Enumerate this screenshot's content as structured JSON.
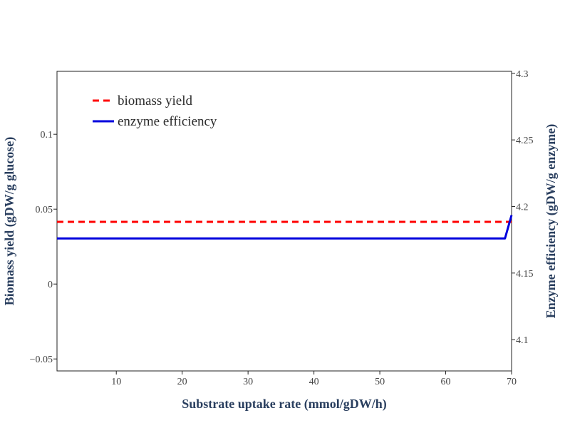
{
  "chart_data": {
    "type": "line",
    "xlabel": "Substrate uptake rate (mmol/gDW/h)",
    "ylabel": "Biomass yield (gDW/g glucose)",
    "y2label": "Enzyme efficiency (gDW/g enzyme)",
    "xlim": [
      1,
      70
    ],
    "ylim": [
      -0.058,
      0.142
    ],
    "y2lim": [
      4.0765,
      4.3015
    ],
    "xticks": [
      10,
      20,
      30,
      40,
      50,
      60,
      70
    ],
    "yticks": [
      -0.05,
      0,
      0.05,
      0.1
    ],
    "ytick_labels": [
      "−0.05",
      "0",
      "0.05",
      "0.1"
    ],
    "y2ticks": [
      4.1,
      4.15,
      4.2,
      4.25,
      4.3
    ],
    "ytick2_labels": [
      "4.1",
      "4.15",
      "4.2",
      "4.25",
      "4.3"
    ],
    "grid": false,
    "legend_position": "top-left",
    "series": [
      {
        "name": "biomass yield",
        "axis": "left",
        "color": "#ff0000",
        "dash": "dashed",
        "x": [
          1,
          70
        ],
        "y": [
          0.0415,
          0.0415
        ]
      },
      {
        "name": "enzyme efficiency",
        "axis": "right",
        "color": "#0000dd",
        "dash": "solid",
        "x": [
          1,
          69,
          70
        ],
        "y": [
          4.176,
          4.176,
          4.1935
        ]
      }
    ]
  }
}
